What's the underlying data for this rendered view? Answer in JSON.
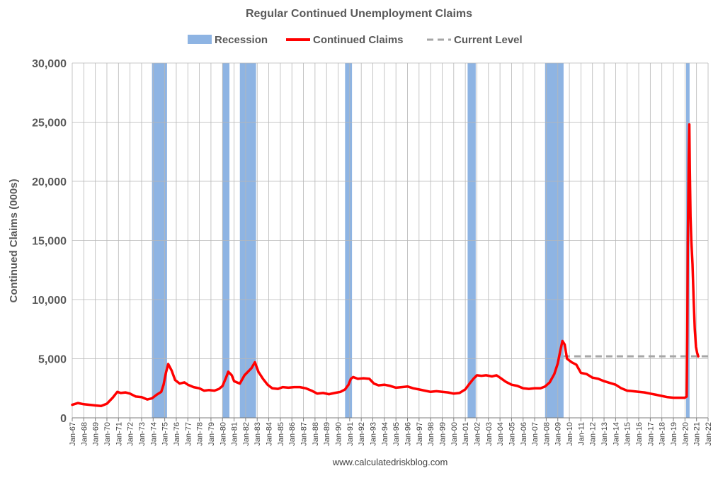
{
  "chart_data": {
    "type": "line",
    "title": "Regular Continued Unemployment Claims",
    "ylabel": "Continued Claims (000s)",
    "xlabel": "",
    "source": "www.calculatedriskblog.com",
    "ylim": [
      0,
      30000
    ],
    "xlim": [
      1967,
      2022
    ],
    "yticks": [
      0,
      5000,
      10000,
      15000,
      20000,
      25000,
      30000
    ],
    "ytick_labels": [
      "0",
      "5,000",
      "10,000",
      "15,000",
      "20,000",
      "25,000",
      "30,000"
    ],
    "xtick_labels": [
      "Jan-67",
      "Jan-68",
      "Jan-69",
      "Jan-70",
      "Jan-71",
      "Jan-72",
      "Jan-73",
      "Jan-74",
      "Jan-75",
      "Jan-76",
      "Jan-77",
      "Jan-78",
      "Jan-79",
      "Jan-80",
      "Jan-81",
      "Jan-82",
      "Jan-83",
      "Jan-84",
      "Jan-85",
      "Jan-86",
      "Jan-87",
      "Jan-88",
      "Jan-89",
      "Jan-90",
      "Jan-91",
      "Jan-92",
      "Jan-93",
      "Jan-94",
      "Jan-95",
      "Jan-96",
      "Jan-97",
      "Jan-98",
      "Jan-99",
      "Jan-00",
      "Jan-01",
      "Jan-02",
      "Jan-03",
      "Jan-04",
      "Jan-05",
      "Jan-06",
      "Jan-07",
      "Jan-08",
      "Jan-09",
      "Jan-10",
      "Jan-11",
      "Jan-12",
      "Jan-13",
      "Jan-14",
      "Jan-15",
      "Jan-16",
      "Jan-17",
      "Jan-18",
      "Jan-19",
      "Jan-20",
      "Jan-21",
      "Jan-22"
    ],
    "grid": true,
    "legend_position": "top-center",
    "legend": [
      {
        "label": "Recession",
        "kind": "band",
        "color": "#8eb4e3"
      },
      {
        "label": "Continued Claims",
        "kind": "line",
        "color": "#ff0000"
      },
      {
        "label": "Current Level",
        "kind": "dashed",
        "color": "#a6a6a6"
      }
    ],
    "recessions": [
      [
        1973.9,
        1975.2
      ],
      [
        1980.0,
        1980.6
      ],
      [
        1981.5,
        1982.9
      ],
      [
        1990.6,
        1991.2
      ],
      [
        2001.2,
        2001.9
      ],
      [
        2007.9,
        2009.5
      ],
      [
        2020.1,
        2020.4
      ]
    ],
    "current_level": {
      "value": 5200,
      "x_range": [
        2009.5,
        2022.0
      ]
    },
    "series": [
      {
        "name": "Continued Claims",
        "color": "#ff0000",
        "points": [
          [
            1967.0,
            1100
          ],
          [
            1967.5,
            1250
          ],
          [
            1968.0,
            1150
          ],
          [
            1968.5,
            1100
          ],
          [
            1969.0,
            1050
          ],
          [
            1969.5,
            1000
          ],
          [
            1970.0,
            1200
          ],
          [
            1970.5,
            1700
          ],
          [
            1970.9,
            2200
          ],
          [
            1971.2,
            2100
          ],
          [
            1971.6,
            2150
          ],
          [
            1972.0,
            2050
          ],
          [
            1972.5,
            1800
          ],
          [
            1973.0,
            1750
          ],
          [
            1973.5,
            1550
          ],
          [
            1973.9,
            1650
          ],
          [
            1974.3,
            1950
          ],
          [
            1974.7,
            2200
          ],
          [
            1974.9,
            2800
          ],
          [
            1975.1,
            3800
          ],
          [
            1975.3,
            4550
          ],
          [
            1975.6,
            4000
          ],
          [
            1975.9,
            3200
          ],
          [
            1976.3,
            2900
          ],
          [
            1976.7,
            3000
          ],
          [
            1977.0,
            2800
          ],
          [
            1977.5,
            2600
          ],
          [
            1978.0,
            2500
          ],
          [
            1978.4,
            2300
          ],
          [
            1978.8,
            2350
          ],
          [
            1979.3,
            2300
          ],
          [
            1979.7,
            2450
          ],
          [
            1980.0,
            2700
          ],
          [
            1980.3,
            3400
          ],
          [
            1980.5,
            3900
          ],
          [
            1980.8,
            3600
          ],
          [
            1981.0,
            3100
          ],
          [
            1981.5,
            2900
          ],
          [
            1981.9,
            3600
          ],
          [
            1982.2,
            3900
          ],
          [
            1982.5,
            4200
          ],
          [
            1982.8,
            4700
          ],
          [
            1983.1,
            3900
          ],
          [
            1983.5,
            3300
          ],
          [
            1983.9,
            2800
          ],
          [
            1984.3,
            2500
          ],
          [
            1984.8,
            2450
          ],
          [
            1985.2,
            2600
          ],
          [
            1985.7,
            2550
          ],
          [
            1986.2,
            2600
          ],
          [
            1986.7,
            2600
          ],
          [
            1987.2,
            2500
          ],
          [
            1987.7,
            2300
          ],
          [
            1988.2,
            2050
          ],
          [
            1988.7,
            2100
          ],
          [
            1989.2,
            2000
          ],
          [
            1989.7,
            2100
          ],
          [
            1990.2,
            2200
          ],
          [
            1990.6,
            2400
          ],
          [
            1990.9,
            2800
          ],
          [
            1991.1,
            3300
          ],
          [
            1991.3,
            3450
          ],
          [
            1991.7,
            3300
          ],
          [
            1992.2,
            3350
          ],
          [
            1992.7,
            3300
          ],
          [
            1993.1,
            2900
          ],
          [
            1993.5,
            2750
          ],
          [
            1994.0,
            2800
          ],
          [
            1994.5,
            2700
          ],
          [
            1995.0,
            2550
          ],
          [
            1995.5,
            2600
          ],
          [
            1996.0,
            2650
          ],
          [
            1996.5,
            2500
          ],
          [
            1997.0,
            2400
          ],
          [
            1997.5,
            2300
          ],
          [
            1998.0,
            2200
          ],
          [
            1998.5,
            2250
          ],
          [
            1999.0,
            2200
          ],
          [
            1999.5,
            2150
          ],
          [
            2000.0,
            2050
          ],
          [
            2000.5,
            2100
          ],
          [
            2001.0,
            2400
          ],
          [
            2001.3,
            2800
          ],
          [
            2001.7,
            3300
          ],
          [
            2002.0,
            3600
          ],
          [
            2002.4,
            3550
          ],
          [
            2002.8,
            3600
          ],
          [
            2003.3,
            3500
          ],
          [
            2003.7,
            3600
          ],
          [
            2004.0,
            3400
          ],
          [
            2004.5,
            3050
          ],
          [
            2005.0,
            2800
          ],
          [
            2005.5,
            2700
          ],
          [
            2006.0,
            2500
          ],
          [
            2006.5,
            2450
          ],
          [
            2007.0,
            2500
          ],
          [
            2007.5,
            2500
          ],
          [
            2007.9,
            2650
          ],
          [
            2008.3,
            3000
          ],
          [
            2008.7,
            3700
          ],
          [
            2009.0,
            4600
          ],
          [
            2009.2,
            5600
          ],
          [
            2009.4,
            6500
          ],
          [
            2009.6,
            6200
          ],
          [
            2009.8,
            5000
          ],
          [
            2010.2,
            4700
          ],
          [
            2010.6,
            4500
          ],
          [
            2011.0,
            3800
          ],
          [
            2011.5,
            3700
          ],
          [
            2012.0,
            3400
          ],
          [
            2012.5,
            3300
          ],
          [
            2013.0,
            3100
          ],
          [
            2013.5,
            2950
          ],
          [
            2014.0,
            2800
          ],
          [
            2014.5,
            2500
          ],
          [
            2015.0,
            2300
          ],
          [
            2015.5,
            2250
          ],
          [
            2016.0,
            2200
          ],
          [
            2016.5,
            2150
          ],
          [
            2017.0,
            2050
          ],
          [
            2017.5,
            1950
          ],
          [
            2018.0,
            1850
          ],
          [
            2018.5,
            1750
          ],
          [
            2019.0,
            1700
          ],
          [
            2019.5,
            1700
          ],
          [
            2020.0,
            1700
          ],
          [
            2020.15,
            1800
          ],
          [
            2020.2,
            7000
          ],
          [
            2020.25,
            15000
          ],
          [
            2020.33,
            22000
          ],
          [
            2020.38,
            24800
          ],
          [
            2020.42,
            21000
          ],
          [
            2020.48,
            17000
          ],
          [
            2020.55,
            15000
          ],
          [
            2020.65,
            13000
          ],
          [
            2020.75,
            10000
          ],
          [
            2020.85,
            7500
          ],
          [
            2020.95,
            6000
          ],
          [
            2021.05,
            5500
          ],
          [
            2021.15,
            5200
          ]
        ]
      }
    ]
  }
}
